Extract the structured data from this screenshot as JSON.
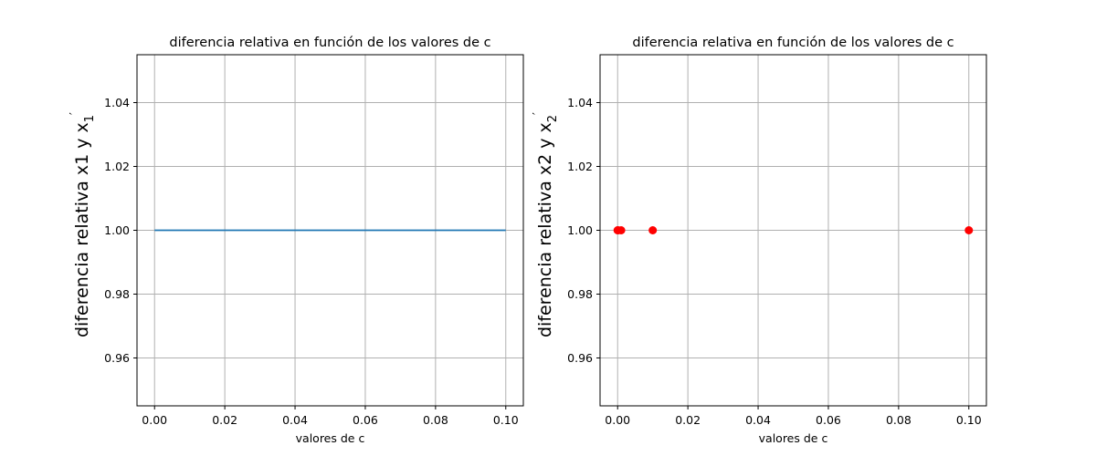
{
  "chart_data": [
    {
      "type": "line",
      "title": "diferencia relativa en función de los valores de c",
      "xlabel": "valores de c",
      "ylabel": {
        "main": "diferencia relativa x1 y x",
        "subscript": "1",
        "prime": "′"
      },
      "xlim": [
        -0.005,
        0.105
      ],
      "ylim": [
        0.945,
        1.055
      ],
      "xticks": [
        0.0,
        0.02,
        0.04,
        0.06,
        0.08,
        0.1
      ],
      "xtick_labels": [
        "0.00",
        "0.02",
        "0.04",
        "0.06",
        "0.08",
        "0.10"
      ],
      "yticks": [
        0.96,
        0.98,
        1.0,
        1.02,
        1.04
      ],
      "ytick_labels": [
        "0.96",
        "0.98",
        "1.00",
        "1.02",
        "1.04"
      ],
      "grid": true,
      "series": [
        {
          "x": [
            0.0,
            0.0001,
            0.001,
            0.01,
            0.1
          ],
          "y": [
            1.0,
            1.0,
            1.0,
            1.0,
            1.0
          ],
          "color": "#1f77b4"
        }
      ]
    },
    {
      "type": "scatter",
      "title": "diferencia relativa en función de los valores de c",
      "xlabel": "valores de c",
      "ylabel": {
        "main": "diferencia relativa x2 y x",
        "subscript": "2",
        "prime": "′"
      },
      "xlim": [
        -0.005,
        0.105
      ],
      "ylim": [
        0.945,
        1.055
      ],
      "xticks": [
        0.0,
        0.02,
        0.04,
        0.06,
        0.08,
        0.1
      ],
      "xtick_labels": [
        "0.00",
        "0.02",
        "0.04",
        "0.06",
        "0.08",
        "0.10"
      ],
      "yticks": [
        0.96,
        0.98,
        1.0,
        1.02,
        1.04
      ],
      "ytick_labels": [
        "0.96",
        "0.98",
        "1.00",
        "1.02",
        "1.04"
      ],
      "grid": true,
      "series": [
        {
          "x": [
            0.0,
            0.0001,
            0.001,
            0.01,
            0.1
          ],
          "y": [
            1.0,
            1.0,
            1.0,
            1.0,
            1.0
          ],
          "color": "#ff0000"
        }
      ]
    }
  ]
}
